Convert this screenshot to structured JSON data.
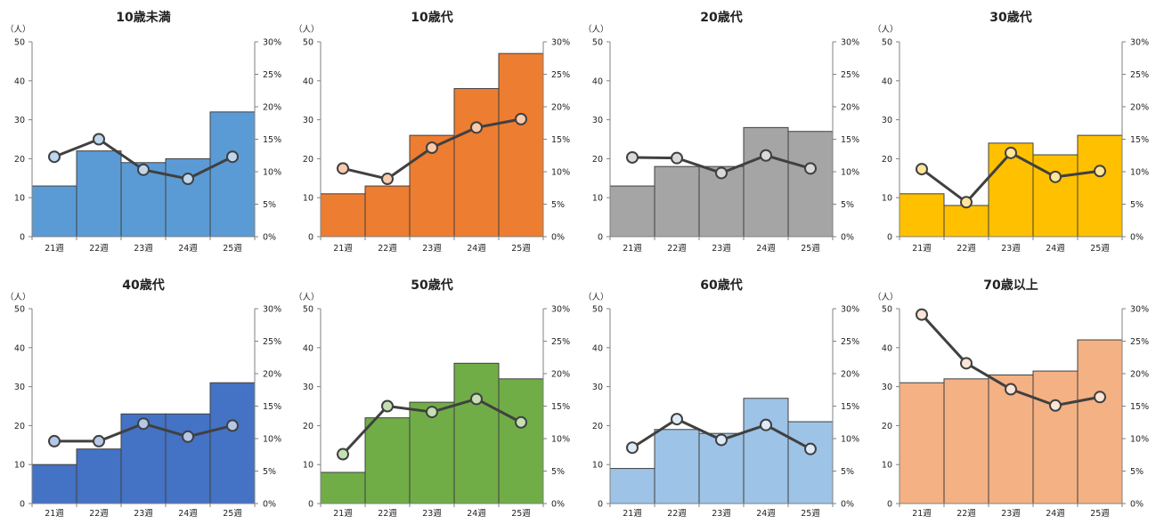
{
  "chart_data": [
    {
      "type": "bar",
      "title": "10歳未満",
      "unit": "（人）",
      "categories": [
        "21週",
        "22週",
        "23週",
        "24週",
        "25週"
      ],
      "series": [
        {
          "values": [
            13,
            22,
            19,
            20,
            32
          ]
        },
        {
          "values": [
            12.3,
            15.0,
            10.3,
            8.9,
            12.3
          ]
        }
      ],
      "ylim": [
        0,
        50
      ],
      "yticks": [
        0,
        10,
        20,
        30,
        40,
        50
      ],
      "y2lim": [
        0,
        30
      ],
      "y2ticks": [
        "0%",
        "5%",
        "10%",
        "15%",
        "20%",
        "25%",
        "30%"
      ],
      "bar_color": "#5b9bd5",
      "marker_color": "#bdd7ee"
    },
    {
      "type": "bar",
      "title": "10歳代",
      "unit": "（人）",
      "categories": [
        "21週",
        "22週",
        "23週",
        "24週",
        "25週"
      ],
      "series": [
        {
          "values": [
            11,
            13,
            26,
            38,
            47
          ]
        },
        {
          "values": [
            10.5,
            8.9,
            13.7,
            16.8,
            18.1
          ]
        }
      ],
      "ylim": [
        0,
        50
      ],
      "yticks": [
        0,
        10,
        20,
        30,
        40,
        50
      ],
      "y2lim": [
        0,
        30
      ],
      "y2ticks": [
        "0%",
        "5%",
        "10%",
        "15%",
        "20%",
        "25%",
        "30%"
      ],
      "bar_color": "#ed7d31",
      "marker_color": "#f8cbad"
    },
    {
      "type": "bar",
      "title": "20歳代",
      "unit": "（人）",
      "categories": [
        "21週",
        "22週",
        "23週",
        "24週",
        "25週"
      ],
      "series": [
        {
          "values": [
            13,
            18,
            18,
            28,
            27
          ]
        },
        {
          "values": [
            12.2,
            12.1,
            9.8,
            12.5,
            10.5
          ]
        }
      ],
      "ylim": [
        0,
        50
      ],
      "yticks": [
        0,
        10,
        20,
        30,
        40,
        50
      ],
      "y2lim": [
        0,
        30
      ],
      "y2ticks": [
        "0%",
        "5%",
        "10%",
        "15%",
        "20%",
        "25%",
        "30%"
      ],
      "bar_color": "#a5a5a5",
      "marker_color": "#d9d9d9"
    },
    {
      "type": "bar",
      "title": "30歳代",
      "unit": "（人）",
      "categories": [
        "21週",
        "22週",
        "23週",
        "24週",
        "25週"
      ],
      "series": [
        {
          "values": [
            11,
            8,
            24,
            21,
            26
          ]
        },
        {
          "values": [
            10.4,
            5.3,
            12.9,
            9.2,
            10.1
          ]
        }
      ],
      "ylim": [
        0,
        50
      ],
      "yticks": [
        0,
        10,
        20,
        30,
        40,
        50
      ],
      "y2lim": [
        0,
        30
      ],
      "y2ticks": [
        "0%",
        "5%",
        "10%",
        "15%",
        "20%",
        "25%",
        "30%"
      ],
      "bar_color": "#ffc000",
      "marker_color": "#ffe699"
    },
    {
      "type": "bar",
      "title": "40歳代",
      "unit": "（人）",
      "categories": [
        "21週",
        "22週",
        "23週",
        "24週",
        "25週"
      ],
      "series": [
        {
          "values": [
            10,
            14,
            23,
            23,
            31
          ]
        },
        {
          "values": [
            9.6,
            9.6,
            12.3,
            10.3,
            12.0
          ]
        }
      ],
      "ylim": [
        0,
        50
      ],
      "yticks": [
        0,
        10,
        20,
        30,
        40,
        50
      ],
      "y2lim": [
        0,
        30
      ],
      "y2ticks": [
        "0%",
        "5%",
        "10%",
        "15%",
        "20%",
        "25%",
        "30%"
      ],
      "bar_color": "#4472c4",
      "marker_color": "#b4c7e7"
    },
    {
      "type": "bar",
      "title": "50歳代",
      "unit": "（人）",
      "categories": [
        "21週",
        "22週",
        "23週",
        "24週",
        "25週"
      ],
      "series": [
        {
          "values": [
            8,
            22,
            26,
            36,
            32
          ]
        },
        {
          "values": [
            7.6,
            15.0,
            14.1,
            16.1,
            12.5
          ]
        }
      ],
      "ylim": [
        0,
        50
      ],
      "yticks": [
        0,
        10,
        20,
        30,
        40,
        50
      ],
      "y2lim": [
        0,
        30
      ],
      "y2ticks": [
        "0%",
        "5%",
        "10%",
        "15%",
        "20%",
        "25%",
        "30%"
      ],
      "bar_color": "#70ad47",
      "marker_color": "#c5e0b4"
    },
    {
      "type": "bar",
      "title": "60歳代",
      "unit": "（人）",
      "categories": [
        "21週",
        "22週",
        "23週",
        "24週",
        "25週"
      ],
      "series": [
        {
          "values": [
            9,
            19,
            18,
            27,
            21
          ]
        },
        {
          "values": [
            8.6,
            13.0,
            9.8,
            12.1,
            8.4
          ]
        }
      ],
      "ylim": [
        0,
        50
      ],
      "yticks": [
        0,
        10,
        20,
        30,
        40,
        50
      ],
      "y2lim": [
        0,
        30
      ],
      "y2ticks": [
        "0%",
        "5%",
        "10%",
        "15%",
        "20%",
        "25%",
        "30%"
      ],
      "bar_color": "#9dc3e6",
      "marker_color": "#deebf7"
    },
    {
      "type": "bar",
      "title": "70歳以上",
      "unit": "（人）",
      "categories": [
        "21週",
        "22週",
        "23週",
        "24週",
        "25週"
      ],
      "series": [
        {
          "values": [
            31,
            32,
            33,
            34,
            42
          ]
        },
        {
          "values": [
            29.1,
            21.6,
            17.6,
            15.1,
            16.4
          ]
        }
      ],
      "ylim": [
        0,
        50
      ],
      "yticks": [
        0,
        10,
        20,
        30,
        40,
        50
      ],
      "y2lim": [
        0,
        30
      ],
      "y2ticks": [
        "0%",
        "5%",
        "10%",
        "15%",
        "20%",
        "25%",
        "30%"
      ],
      "bar_color": "#f4b183",
      "marker_color": "#fbe5d6"
    }
  ]
}
